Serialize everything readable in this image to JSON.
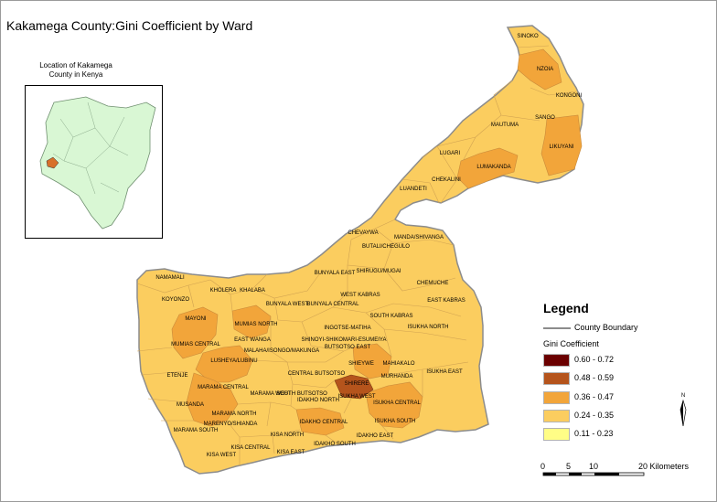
{
  "title": "Kakamega County:Gini Coefficient by Ward",
  "inset": {
    "caption_line1": "Location of Kakamega",
    "caption_line2": "County in Kenya"
  },
  "legend": {
    "title": "Legend",
    "boundary_label": "County Boundary",
    "gini_label": "Gini Coefficient",
    "classes": [
      {
        "label": "0.60 - 0.72",
        "color": "#6b0000"
      },
      {
        "label": "0.48 - 0.59",
        "color": "#b5541c"
      },
      {
        "label": "0.36 - 0.47",
        "color": "#f2a53a"
      },
      {
        "label": "0.24 - 0.35",
        "color": "#fbcd5f"
      },
      {
        "label": "0.11 - 0.23",
        "color": "#fffd86"
      }
    ]
  },
  "scale": {
    "ticks": [
      "0",
      "5",
      "10",
      "20 Kilometers"
    ]
  },
  "colors": {
    "ward_fill": "#fbcd5f",
    "mid_fill": "#f2a53a",
    "high_fill": "#b5541c",
    "inset_fill": "#d9f7d4",
    "boundary": "#8c8c8c"
  },
  "north_arrow": "north-arrow-icon",
  "wards": [
    "SINOKO",
    "NZOIA",
    "KONGONI",
    "MAUTUMA",
    "SANGO",
    "LIKUYANI",
    "LUGARI",
    "LUMAKANDA",
    "CHEKALINI",
    "LUANDETI",
    "CHEVAYWA",
    "MANDA/SHIVANGA",
    "BUTALI/CHEGULO",
    "BUNYALA EAST",
    "SHIRUGU/MUGAI",
    "NAMAMALI",
    "KHOLERA",
    "KHALABA",
    "CHEMUCHE",
    "KOYONZO",
    "BUNYALA WEST",
    "BUNYALA CENTRAL",
    "WEST KABRAS",
    "EAST KABRAS",
    "MAYONI",
    "MUMIAS NORTH",
    "SOUTH KABRAS",
    "ISUKHA NORTH",
    "INGOTSE-MATIHA",
    "EAST WANGA",
    "SHINOYI-SHIKOMARI-ESUMEIYA",
    "MUMIAS CENTRAL",
    "MALAHA/ISONGO/MAKUNGA",
    "BUTSOTSO EAST",
    "LUSHEYA/LUBINU",
    "SHIEYWE",
    "MAHIAKALO",
    "ETENJE",
    "CENTRAL BUTSOTSO",
    "SHIRERE",
    "MURHANDA",
    "ISUKHA EAST",
    "MARAMA CENTRAL",
    "ISUKHA WEST",
    "SOUTH BUTSOTSO",
    "MUSANDA",
    "IDAKHO NORTH",
    "ISUKHA CENTRAL",
    "MARAMA WEST",
    "MARAMA NORTH",
    "MARENYO/SHIANDA",
    "IDAKHO CENTRAL",
    "MARAMA SOUTH",
    "ISUKHA SOUTH",
    "IDAKHO EAST",
    "KISA NORTH",
    "KISA CENTRAL",
    "IDAKHO SOUTH",
    "KISA EAST",
    "KISA WEST"
  ]
}
